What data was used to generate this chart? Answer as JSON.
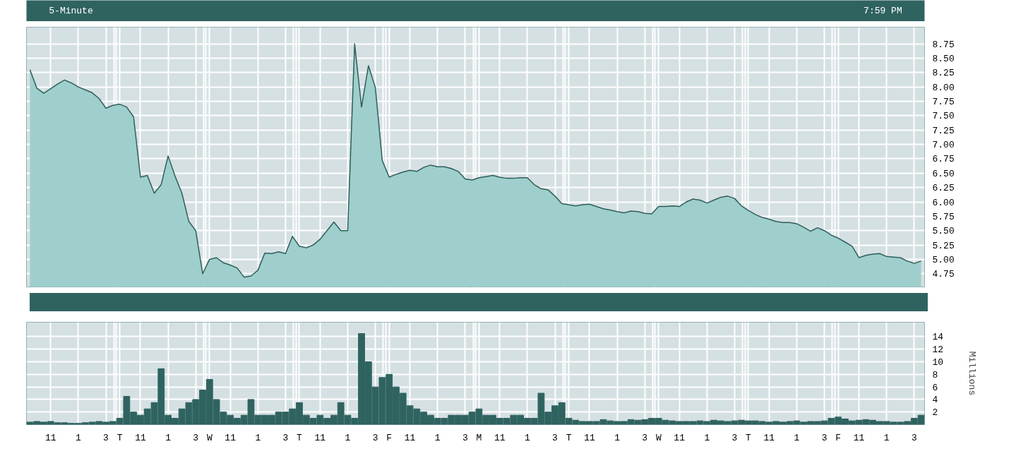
{
  "chart_data": [
    {
      "type": "area",
      "title": "5-Minute",
      "annotations": [
        "7:59 PM"
      ],
      "color": "#9ecfcc",
      "grid": true,
      "tick_labels": "y",
      "values": [
        8.3,
        7.98,
        7.89,
        7.97,
        8.05,
        8.12,
        8.07,
        8.0,
        7.95,
        7.9,
        7.8,
        7.63,
        7.68,
        7.7,
        7.65,
        7.48,
        6.43,
        6.46,
        6.15,
        6.3,
        6.8,
        6.45,
        6.15,
        5.66,
        5.5,
        4.75,
        5.0,
        5.03,
        4.94,
        4.9,
        4.85,
        4.69,
        4.71,
        4.81,
        5.11,
        5.1,
        5.13,
        5.1,
        5.4,
        5.23,
        5.2,
        5.25,
        5.35,
        5.5,
        5.65,
        5.5,
        5.5,
        8.75,
        7.65,
        8.37,
        7.99,
        6.72,
        6.43,
        6.48,
        6.52,
        6.55,
        6.53,
        6.6,
        6.64,
        6.61,
        6.61,
        6.58,
        6.53,
        6.4,
        6.38,
        6.42,
        6.44,
        6.46,
        6.43,
        6.41,
        6.41,
        6.42,
        6.42,
        6.3,
        6.23,
        6.21,
        6.1,
        5.97,
        5.95,
        5.93,
        5.95,
        5.96,
        5.92,
        5.88,
        5.86,
        5.83,
        5.81,
        5.84,
        5.83,
        5.8,
        5.79,
        5.92,
        5.92,
        5.93,
        5.92,
        6.0,
        6.05,
        6.03,
        5.98,
        6.03,
        6.08,
        6.1,
        6.06,
        5.93,
        5.85,
        5.78,
        5.73,
        5.7,
        5.66,
        5.64,
        5.64,
        5.62,
        5.56,
        5.49,
        5.55,
        5.5,
        5.42,
        5.37,
        5.3,
        5.23,
        5.03,
        5.07,
        5.09,
        5.1,
        5.05,
        5.04,
        5.03,
        4.97,
        4.93,
        4.97
      ],
      "ylim": [
        4.52,
        9.04
      ],
      "yticks": [
        4.75,
        {
          "value": 5.0,
          "label": "5.00"
        },
        5.25,
        {
          "value": 5.5,
          "label": "5.50"
        },
        5.75,
        {
          "value": 6.0,
          "label": "6.00"
        },
        6.25,
        {
          "value": 6.5,
          "label": "6.50"
        },
        6.75,
        {
          "value": 7.0,
          "label": "7.00"
        },
        7.25,
        {
          "value": 7.5,
          "label": "7.50"
        },
        7.75,
        {
          "value": 8.0,
          "label": "8.00"
        },
        8.25,
        {
          "value": 8.5,
          "label": "8.50"
        },
        8.75
      ]
    },
    {
      "type": "bar",
      "ylabel": "Millions",
      "color": "#2f6360",
      "grid": true,
      "categories": [
        null,
        null,
        null,
        "11",
        null,
        null,
        null,
        "1",
        null,
        null,
        null,
        "3",
        null,
        "T",
        null,
        null,
        "11",
        null,
        null,
        null,
        "1",
        null,
        null,
        null,
        "3",
        null,
        "W",
        null,
        null,
        "11",
        null,
        null,
        null,
        "1",
        null,
        null,
        null,
        "3",
        null,
        "T",
        null,
        null,
        "11",
        null,
        null,
        null,
        "1",
        null,
        null,
        null,
        "3",
        null,
        "F",
        null,
        null,
        "11",
        null,
        null,
        null,
        "1",
        null,
        null,
        null,
        "3",
        null,
        "M",
        null,
        null,
        "11",
        null,
        null,
        null,
        "1",
        null,
        null,
        null,
        "3",
        null,
        "T",
        null,
        null,
        "11",
        null,
        null,
        null,
        "1",
        null,
        null,
        null,
        "3",
        null,
        "W",
        null,
        null,
        "11",
        null,
        null,
        null,
        "1",
        null,
        null,
        null,
        "3",
        null,
        "T",
        null,
        null,
        "11",
        null,
        null,
        null,
        "1",
        null,
        null,
        null,
        "3",
        null,
        "F",
        null,
        null,
        "11",
        null,
        null,
        null,
        "1",
        null,
        null,
        null,
        "3",
        null
      ],
      "values": [
        0.4,
        0.5,
        0.4,
        0.5,
        0.3,
        0.3,
        0.2,
        0.2,
        0.3,
        0.4,
        0.5,
        0.4,
        0.5,
        1.0,
        4.5,
        2.0,
        1.5,
        2.5,
        3.5,
        8.9,
        1.5,
        1.0,
        2.5,
        3.5,
        4.0,
        5.5,
        7.2,
        4.0,
        2.0,
        1.5,
        1.0,
        1.5,
        4.0,
        1.5,
        1.5,
        1.5,
        2.0,
        2.0,
        2.5,
        3.5,
        1.5,
        1.0,
        1.5,
        1.0,
        1.5,
        3.5,
        1.5,
        1.0,
        14.5,
        10.0,
        6.0,
        7.5,
        8.0,
        6.0,
        5.0,
        3.0,
        2.5,
        2.0,
        1.5,
        1.0,
        1.0,
        1.5,
        1.5,
        1.5,
        2.0,
        2.5,
        1.5,
        1.5,
        1.0,
        1.0,
        1.5,
        1.5,
        1.0,
        1.0,
        5.0,
        2.0,
        3.0,
        3.5,
        1.0,
        0.7,
        0.5,
        0.5,
        0.5,
        0.8,
        0.6,
        0.5,
        0.5,
        0.8,
        0.7,
        0.8,
        1.0,
        1.0,
        0.7,
        0.6,
        0.5,
        0.5,
        0.5,
        0.6,
        0.5,
        0.7,
        0.6,
        0.5,
        0.6,
        0.7,
        0.6,
        0.6,
        0.5,
        0.4,
        0.5,
        0.4,
        0.5,
        0.6,
        0.4,
        0.5,
        0.5,
        0.6,
        1.0,
        1.2,
        0.9,
        0.6,
        0.7,
        0.8,
        0.7,
        0.5,
        0.5,
        0.4,
        0.4,
        0.5,
        1.0,
        1.5
      ],
      "ylim": [
        0,
        16.3
      ],
      "yticks": [
        2,
        4,
        6,
        8,
        10,
        12,
        14
      ]
    }
  ]
}
